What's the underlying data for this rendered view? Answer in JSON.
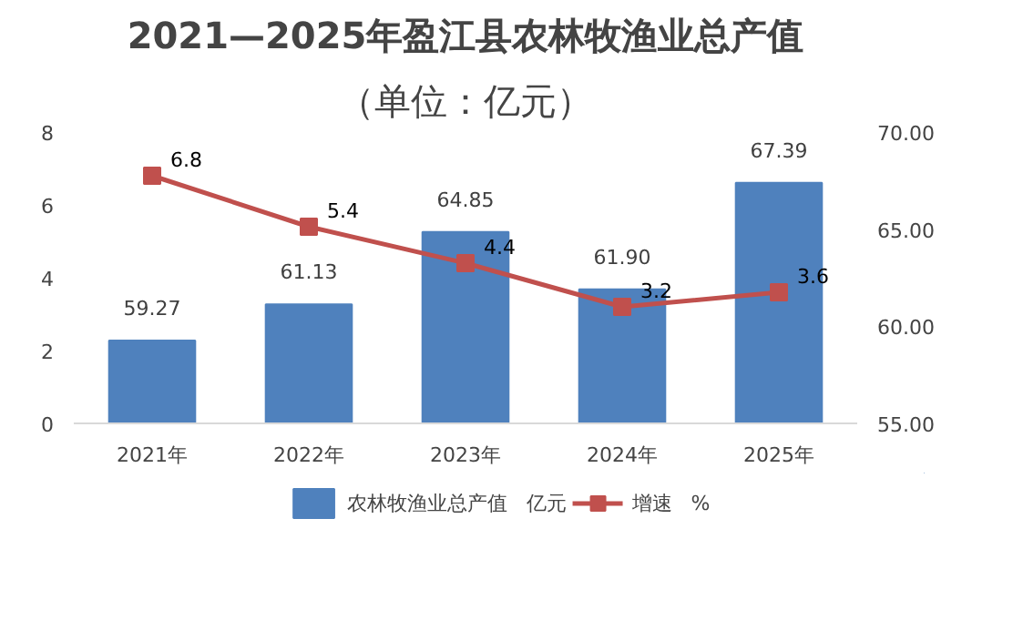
{
  "chart_data": {
    "type": "bar",
    "title": "2021—2025年盈江县农林牧渔业总产值",
    "subtitle": "（单位：亿元）",
    "categories": [
      "2021年",
      "2022年",
      "2023年",
      "2024年",
      "2025年"
    ],
    "series": [
      {
        "name": "农林牧渔业总产值   亿元",
        "axis": "y2",
        "color": "#4f81bd",
        "values": [
          59.27,
          61.13,
          64.85,
          61.9,
          67.39
        ],
        "value_labels": [
          "59.27",
          "61.13",
          "64.85",
          "61.90",
          "67.39"
        ]
      },
      {
        "name": "增速   %",
        "type": "line",
        "color": "#c0504d",
        "marker": "square",
        "values": [
          6.8,
          5.4,
          4.4,
          3.2,
          3.6
        ],
        "value_labels": [
          "6.8",
          "5.4",
          "4.4",
          "3.2",
          "3.6"
        ]
      }
    ],
    "ylim": [
      0,
      8
    ],
    "yticks": [
      0,
      2,
      4,
      6,
      8
    ],
    "y2lim": [
      55,
      70
    ],
    "y2ticks": [
      {
        "value": 55,
        "label": "55.00"
      },
      {
        "value": 60,
        "label": "60.00"
      },
      {
        "value": 65,
        "label": "65.00"
      },
      {
        "value": 70,
        "label": "70.00"
      }
    ],
    "grid": false,
    "legend": "bottom"
  }
}
